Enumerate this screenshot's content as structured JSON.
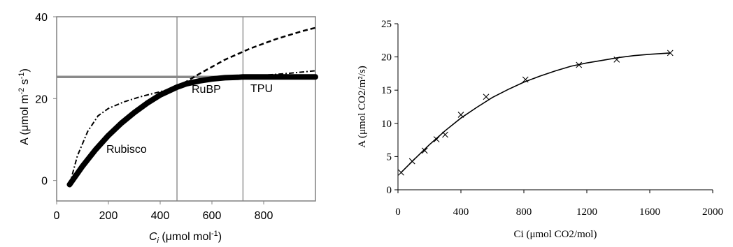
{
  "chart_data": [
    {
      "type": "line",
      "xlim": [
        0,
        1000
      ],
      "ylim": [
        -5,
        40
      ],
      "x_ticks": [
        0,
        200,
        400,
        600,
        800
      ],
      "y_ticks": [
        0,
        20,
        40
      ],
      "ylabel": {
        "main": "A (μmol m",
        "sup1": "-2",
        "mid": " s",
        "sup2": "-1",
        "end": ")"
      },
      "xlabel": {
        "main": "C",
        "sub": "i",
        "mid": " (μmol mol",
        "sup": "-1",
        "end": ")"
      },
      "annotations": [
        "Rubisco",
        "RuBP",
        "TPU"
      ],
      "vlines": [
        465,
        720
      ],
      "series": [
        {
          "style": "thick",
          "x": [
            50,
            100,
            150,
            200,
            250,
            300,
            350,
            400,
            465,
            500,
            550,
            600,
            650,
            700,
            720,
            1000
          ],
          "y": [
            -1,
            3.5,
            7.5,
            11.0,
            14.0,
            16.6,
            18.9,
            20.9,
            22.8,
            23.6,
            24.3,
            24.8,
            25.1,
            25.2,
            25.3,
            25.3
          ]
        },
        {
          "style": "dashed",
          "x": [
            465,
            550,
            650,
            750,
            850,
            950,
            1000
          ],
          "y": [
            22.8,
            26.0,
            29.5,
            32.3,
            34.6,
            36.5,
            37.3
          ]
        },
        {
          "style": "dashdot",
          "x": [
            50,
            80,
            120,
            160,
            200,
            260,
            320,
            400,
            465,
            550,
            650,
            720,
            800,
            900,
            1000
          ],
          "y": [
            -1,
            6,
            12,
            15.8,
            17.6,
            19.2,
            20.4,
            21.7,
            22.8,
            24.0,
            25.0,
            25.3,
            25.7,
            26.2,
            26.8
          ]
        },
        {
          "style": "gray",
          "x": [
            0,
            1000
          ],
          "y": [
            25.3,
            25.3
          ]
        }
      ]
    },
    {
      "type": "scatter",
      "xlabel": "Ci (μmol CO2/mol)",
      "ylabel": "A (μmol CO2/m²/s)",
      "xlim": [
        0,
        2000
      ],
      "ylim": [
        0,
        25
      ],
      "x_ticks": [
        0,
        400,
        800,
        1200,
        1600,
        2000
      ],
      "y_ticks": [
        0,
        5,
        10,
        15,
        20,
        25
      ],
      "points": {
        "x": [
          20,
          90,
          170,
          245,
          300,
          400,
          560,
          810,
          1150,
          1390,
          1730
        ],
        "y": [
          2.6,
          4.3,
          5.9,
          7.6,
          8.3,
          11.3,
          14.0,
          16.6,
          18.8,
          19.6,
          20.6
        ]
      },
      "fit": {
        "x": [
          20,
          100,
          200,
          300,
          400,
          500,
          600,
          700,
          800,
          900,
          1000,
          1100,
          1200,
          1300,
          1400,
          1500,
          1600,
          1730
        ],
        "y": [
          2.6,
          4.5,
          6.8,
          8.9,
          10.8,
          12.4,
          13.9,
          15.1,
          16.2,
          17.1,
          17.9,
          18.6,
          19.1,
          19.5,
          19.9,
          20.2,
          20.4,
          20.6
        ]
      }
    }
  ]
}
